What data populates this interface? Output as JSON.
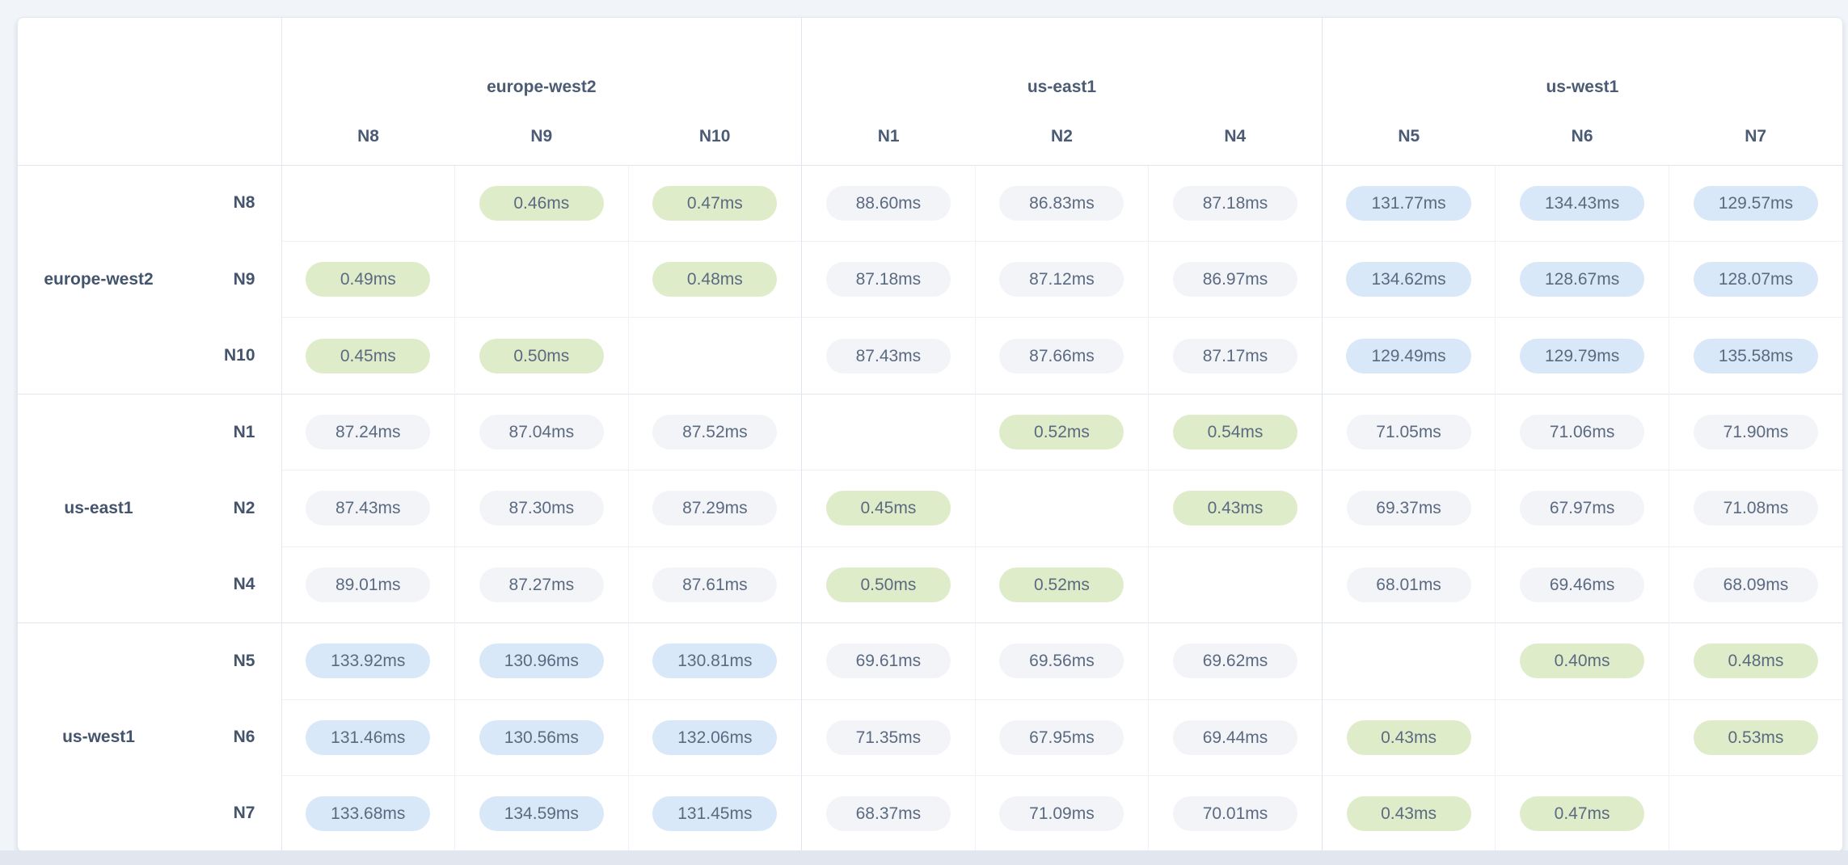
{
  "page": {
    "background": "#f1f4f8",
    "bottom_strip_color": "#e2e6ee"
  },
  "card": {
    "background": "#ffffff",
    "border_color": "#e3e8f0"
  },
  "header": {
    "corner_label": ""
  },
  "matrix": {
    "column_groups": [
      {
        "region": "europe-west2",
        "nodes": [
          "N8",
          "N9",
          "N10"
        ]
      },
      {
        "region": "us-east1",
        "nodes": [
          "N1",
          "N2",
          "N4"
        ]
      },
      {
        "region": "us-west1",
        "nodes": [
          "N5",
          "N6",
          "N7"
        ]
      }
    ],
    "row_groups": [
      {
        "region": "europe-west2",
        "rows": [
          {
            "node": "N8",
            "cells": [
              null,
              "0.46ms",
              "0.47ms",
              "88.60ms",
              "86.83ms",
              "87.18ms",
              "131.77ms",
              "134.43ms",
              "129.57ms"
            ]
          },
          {
            "node": "N9",
            "cells": [
              "0.49ms",
              null,
              "0.48ms",
              "87.18ms",
              "87.12ms",
              "86.97ms",
              "134.62ms",
              "128.67ms",
              "128.07ms"
            ]
          },
          {
            "node": "N10",
            "cells": [
              "0.45ms",
              "0.50ms",
              null,
              "87.43ms",
              "87.66ms",
              "87.17ms",
              "129.49ms",
              "129.79ms",
              "135.58ms"
            ]
          }
        ]
      },
      {
        "region": "us-east1",
        "rows": [
          {
            "node": "N1",
            "cells": [
              "87.24ms",
              "87.04ms",
              "87.52ms",
              null,
              "0.52ms",
              "0.54ms",
              "71.05ms",
              "71.06ms",
              "71.90ms"
            ]
          },
          {
            "node": "N2",
            "cells": [
              "87.43ms",
              "87.30ms",
              "87.29ms",
              "0.45ms",
              null,
              "0.43ms",
              "69.37ms",
              "67.97ms",
              "71.08ms"
            ]
          },
          {
            "node": "N4",
            "cells": [
              "89.01ms",
              "87.27ms",
              "87.61ms",
              "0.50ms",
              "0.52ms",
              null,
              "68.01ms",
              "69.46ms",
              "68.09ms"
            ]
          }
        ]
      },
      {
        "region": "us-west1",
        "rows": [
          {
            "node": "N5",
            "cells": [
              "133.92ms",
              "130.96ms",
              "130.81ms",
              "69.61ms",
              "69.56ms",
              "69.62ms",
              null,
              "0.40ms",
              "0.48ms"
            ]
          },
          {
            "node": "N6",
            "cells": [
              "131.46ms",
              "130.56ms",
              "132.06ms",
              "71.35ms",
              "67.95ms",
              "69.44ms",
              "0.43ms",
              null,
              "0.53ms"
            ]
          },
          {
            "node": "N7",
            "cells": [
              "133.68ms",
              "134.59ms",
              "131.45ms",
              "68.37ms",
              "71.09ms",
              "70.01ms",
              "0.43ms",
              "0.47ms",
              null
            ]
          }
        ]
      }
    ]
  },
  "value_styles": {
    "low": {
      "max_ms": 1,
      "background": "#dfecca",
      "text": "#5b6a80"
    },
    "medium": {
      "max_ms": 100,
      "background": "#f2f4f8",
      "text": "#5b6a80"
    },
    "high": {
      "max_ms": null,
      "background": "#d8e8f8",
      "text": "#5b6a80"
    }
  },
  "text_colors": {
    "header": "#4b5b73",
    "row_label": "#44546c"
  }
}
